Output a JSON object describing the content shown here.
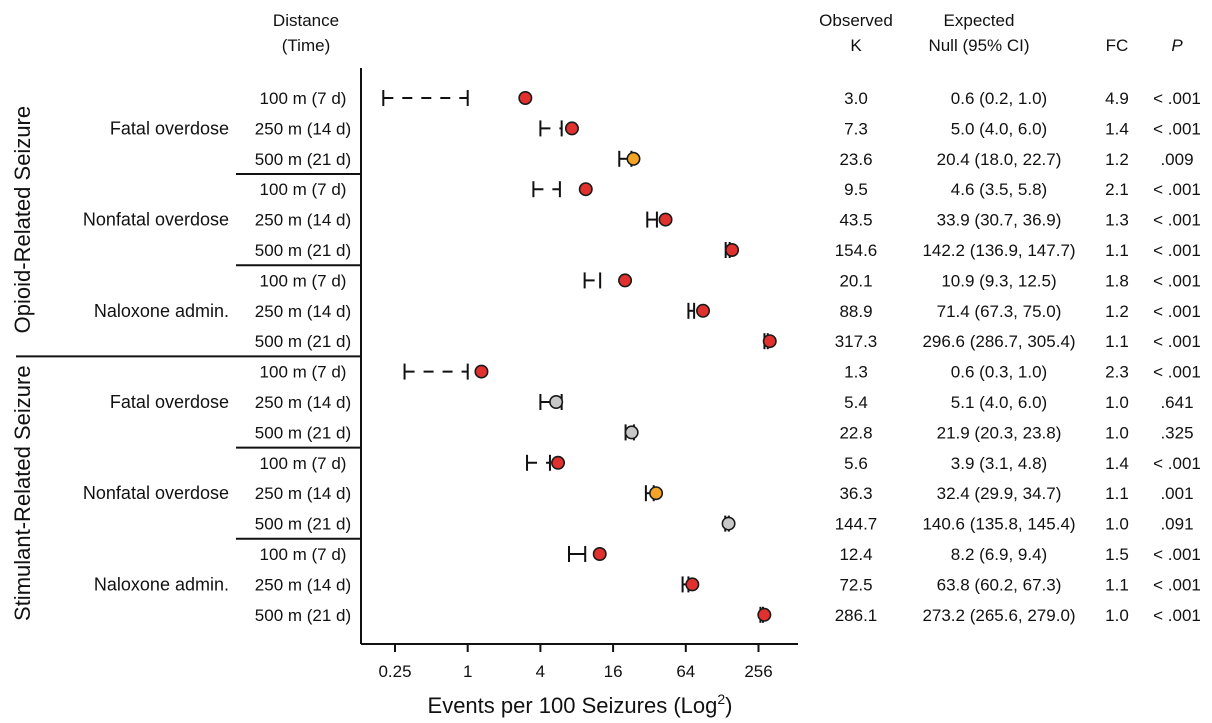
{
  "chart_data": {
    "type": "forest",
    "xlabel": "Events per 100 Seizures (Log",
    "xlabel_sup": "2",
    "xlabel_close": ")",
    "x_scale": "log2",
    "xlim": [
      0.125,
      512
    ],
    "x_ticks": [
      0.25,
      1,
      4,
      16,
      64,
      256
    ],
    "x_tick_labels": [
      "0.25",
      "1",
      "4",
      "16",
      "64",
      "256"
    ],
    "headers": {
      "distance_l1": "Distance",
      "distance_l2": "(Time)",
      "observed_l1": "Observed",
      "observed_l2": "K",
      "expected_l1": "Expected",
      "expected_l2": "Null (95% CI)",
      "fc": "FC",
      "p": "P"
    },
    "colors": {
      "significant": "#e0312f",
      "borderline": "#f4a427",
      "nonsignificant": "#c8c8c8",
      "outline": "#1a1a1a"
    },
    "panels": [
      {
        "label": "Opioid-Related Seizure",
        "groups": [
          {
            "label": "Fatal overdose",
            "rows": [
              {
                "distance": "100 m  (7 d)",
                "observed": 3.0,
                "observed_label": "3.0",
                "expected": 0.6,
                "ci": [
                  0.2,
                  1.0
                ],
                "expected_label": "0.6 (0.2, 1.0)",
                "fc": "4.9",
                "p": "< .001",
                "color": "significant",
                "dashed": true
              },
              {
                "distance": "250 m (14 d)",
                "observed": 7.3,
                "observed_label": "7.3",
                "expected": 5.0,
                "ci": [
                  4.0,
                  6.0
                ],
                "expected_label": "5.0 (4.0, 6.0)",
                "fc": "1.4",
                "p": "< .001",
                "color": "significant",
                "dashed": true
              },
              {
                "distance": "500 m (21 d)",
                "observed": 23.6,
                "observed_label": "23.6",
                "expected": 20.4,
                "ci": [
                  18.0,
                  22.7
                ],
                "expected_label": "20.4 (18.0, 22.7)",
                "fc": "1.2",
                "p": ".009",
                "color": "borderline",
                "dashed": false
              }
            ]
          },
          {
            "label": "Nonfatal overdose",
            "rows": [
              {
                "distance": "100 m  (7 d)",
                "observed": 9.5,
                "observed_label": "9.5",
                "expected": 4.6,
                "ci": [
                  3.5,
                  5.8
                ],
                "expected_label": "4.6 (3.5, 5.8)",
                "fc": "2.1",
                "p": "< .001",
                "color": "significant",
                "dashed": true
              },
              {
                "distance": "250 m (14 d)",
                "observed": 43.5,
                "observed_label": "43.5",
                "expected": 33.9,
                "ci": [
                  30.7,
                  36.9
                ],
                "expected_label": "33.9 (30.7, 36.9)",
                "fc": "1.3",
                "p": "< .001",
                "color": "significant",
                "dashed": false
              },
              {
                "distance": "500 m (21 d)",
                "observed": 154.6,
                "observed_label": "154.6",
                "expected": 142.2,
                "ci": [
                  136.9,
                  147.7
                ],
                "expected_label": "142.2 (136.9, 147.7)",
                "fc": "1.1",
                "p": "< .001",
                "color": "significant",
                "dashed": false
              }
            ]
          },
          {
            "label": "Naloxone admin.",
            "rows": [
              {
                "distance": "100 m  (7 d)",
                "observed": 20.1,
                "observed_label": "20.1",
                "expected": 10.9,
                "ci": [
                  9.3,
                  12.5
                ],
                "expected_label": "10.9 (9.3, 12.5)",
                "fc": "1.8",
                "p": "< .001",
                "color": "significant",
                "dashed": true
              },
              {
                "distance": "250 m (14 d)",
                "observed": 88.9,
                "observed_label": "88.9",
                "expected": 71.4,
                "ci": [
                  67.3,
                  75.0
                ],
                "expected_label": "71.4 (67.3, 75.0)",
                "fc": "1.2",
                "p": "< .001",
                "color": "significant",
                "dashed": false
              },
              {
                "distance": "500 m (21 d)",
                "observed": 317.3,
                "observed_label": "317.3",
                "expected": 296.6,
                "ci": [
                  286.7,
                  305.4
                ],
                "expected_label": "296.6 (286.7, 305.4)",
                "fc": "1.1",
                "p": "< .001",
                "color": "significant",
                "dashed": false
              }
            ]
          }
        ]
      },
      {
        "label": "Stimulant-Related Seizure",
        "groups": [
          {
            "label": "Fatal overdose",
            "rows": [
              {
                "distance": "100 m  (7 d)",
                "observed": 1.3,
                "observed_label": "1.3",
                "expected": 0.6,
                "ci": [
                  0.3,
                  1.0
                ],
                "expected_label": "0.6 (0.3, 1.0)",
                "fc": "2.3",
                "p": "< .001",
                "color": "significant",
                "dashed": true
              },
              {
                "distance": "250 m (14 d)",
                "observed": 5.4,
                "observed_label": "5.4",
                "expected": 5.1,
                "ci": [
                  4.0,
                  6.0
                ],
                "expected_label": "5.1 (4.0, 6.0)",
                "fc": "1.0",
                "p": ".641",
                "color": "nonsignificant",
                "dashed": false
              },
              {
                "distance": "500 m (21 d)",
                "observed": 22.8,
                "observed_label": "22.8",
                "expected": 21.9,
                "ci": [
                  20.3,
                  23.8
                ],
                "expected_label": "21.9 (20.3, 23.8)",
                "fc": "1.0",
                "p": ".325",
                "color": "nonsignificant",
                "dashed": false
              }
            ]
          },
          {
            "label": "Nonfatal overdose",
            "rows": [
              {
                "distance": "100 m  (7 d)",
                "observed": 5.6,
                "observed_label": "5.6",
                "expected": 3.9,
                "ci": [
                  3.1,
                  4.8
                ],
                "expected_label": "3.9 (3.1, 4.8)",
                "fc": "1.4",
                "p": "< .001",
                "color": "significant",
                "dashed": true
              },
              {
                "distance": "250 m (14 d)",
                "observed": 36.3,
                "observed_label": "36.3",
                "expected": 32.4,
                "ci": [
                  29.9,
                  34.7
                ],
                "expected_label": "32.4 (29.9, 34.7)",
                "fc": "1.1",
                "p": ".001",
                "color": "borderline",
                "dashed": false
              },
              {
                "distance": "500 m (21 d)",
                "observed": 144.7,
                "observed_label": "144.7",
                "expected": 140.6,
                "ci": [
                  135.8,
                  145.4
                ],
                "expected_label": "140.6 (135.8, 145.4)",
                "fc": "1.0",
                "p": ".091",
                "color": "nonsignificant",
                "dashed": false
              }
            ]
          },
          {
            "label": "Naloxone admin.",
            "rows": [
              {
                "distance": "100 m  (7 d)",
                "observed": 12.4,
                "observed_label": "12.4",
                "expected": 8.2,
                "ci": [
                  6.9,
                  9.4
                ],
                "expected_label": "8.2 (6.9, 9.4)",
                "fc": "1.5",
                "p": "< .001",
                "color": "significant",
                "dashed": false
              },
              {
                "distance": "250 m (14 d)",
                "observed": 72.5,
                "observed_label": "72.5",
                "expected": 63.8,
                "ci": [
                  60.2,
                  67.3
                ],
                "expected_label": "63.8 (60.2, 67.3)",
                "fc": "1.1",
                "p": "< .001",
                "color": "significant",
                "dashed": false
              },
              {
                "distance": "500 m (21 d)",
                "observed": 286.1,
                "observed_label": "286.1",
                "expected": 273.2,
                "ci": [
                  265.6,
                  279.0
                ],
                "expected_label": "273.2 (265.6, 279.0)",
                "fc": "1.0",
                "p": "< .001",
                "color": "significant",
                "dashed": false
              }
            ]
          }
        ]
      }
    ]
  }
}
